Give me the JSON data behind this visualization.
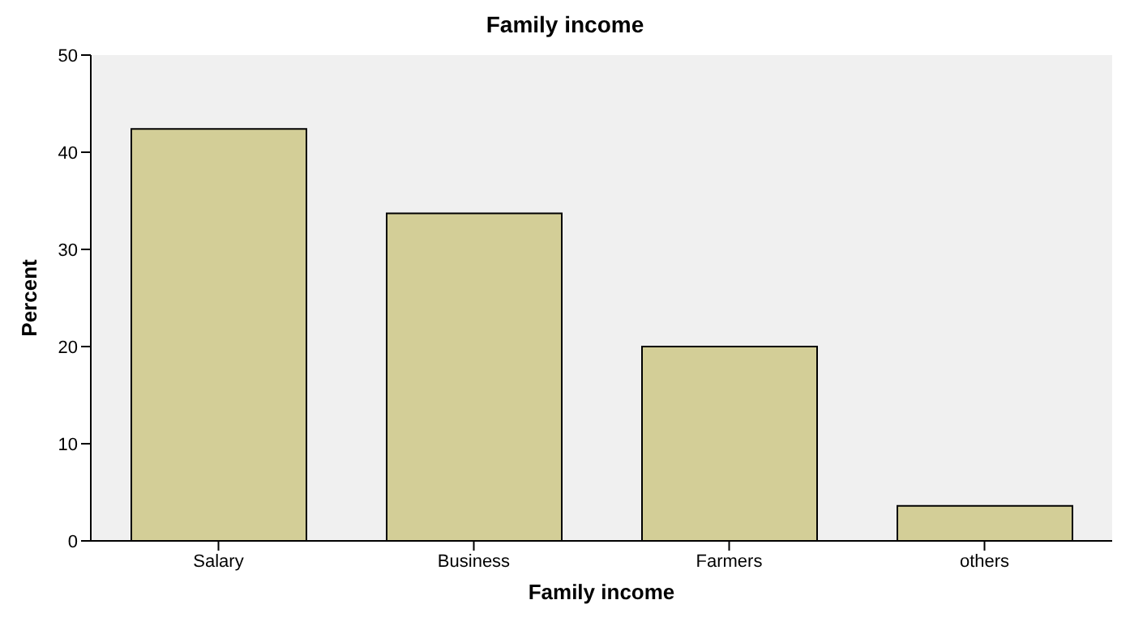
{
  "chart_data": {
    "type": "bar",
    "title": "Family income",
    "xlabel": "Family income",
    "ylabel": "Percent",
    "categories": [
      "Salary",
      "Business",
      "Farmers",
      "others"
    ],
    "values": [
      42.4,
      33.7,
      20.0,
      3.6
    ],
    "color": "#d3ce97",
    "ylim": [
      0,
      50
    ],
    "yticks": [
      0,
      10,
      20,
      30,
      40,
      50
    ],
    "grid": false
  }
}
